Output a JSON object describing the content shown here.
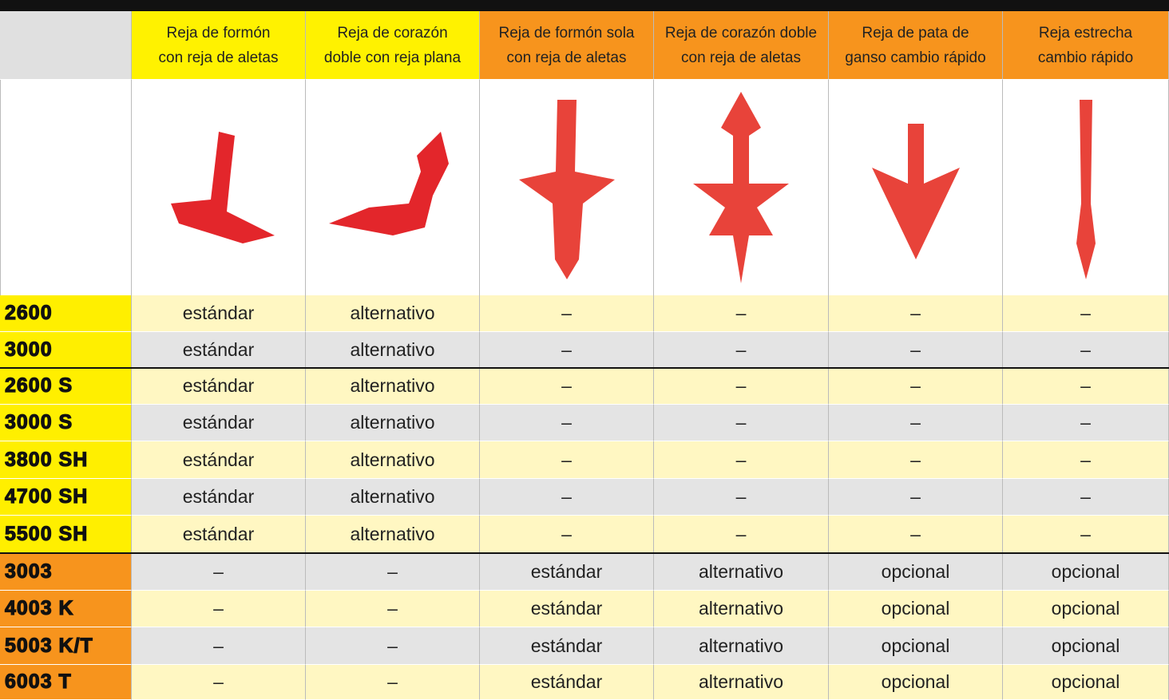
{
  "header": {
    "columns": [
      [
        "Reja de formón",
        "con reja de aletas"
      ],
      [
        "Reja de corazón",
        "doble con reja plana"
      ],
      [
        "Reja de formón sola",
        "con reja de aletas"
      ],
      [
        "Reja de corazón doble",
        "con reja de aletas"
      ],
      [
        "Reja de pata de",
        "ganso cambio rápido"
      ],
      [
        "Reja estrecha",
        "cambio rápido"
      ]
    ]
  },
  "table": {
    "rows": [
      {
        "model": "2600",
        "cells": [
          "estándar",
          "alternativo",
          "–",
          "–",
          "–",
          "–"
        ]
      },
      {
        "model": "3000",
        "cells": [
          "estándar",
          "alternativo",
          "–",
          "–",
          "–",
          "–"
        ]
      },
      {
        "model": "2600 S",
        "cells": [
          "estándar",
          "alternativo",
          "–",
          "–",
          "–",
          "–"
        ]
      },
      {
        "model": "3000 S",
        "cells": [
          "estándar",
          "alternativo",
          "–",
          "–",
          "–",
          "–"
        ]
      },
      {
        "model": "3800 SH",
        "cells": [
          "estándar",
          "alternativo",
          "–",
          "–",
          "–",
          "–"
        ]
      },
      {
        "model": "4700 SH",
        "cells": [
          "estándar",
          "alternativo",
          "–",
          "–",
          "–",
          "–"
        ]
      },
      {
        "model": "5500 SH",
        "cells": [
          "estándar",
          "alternativo",
          "–",
          "–",
          "–",
          "–"
        ]
      },
      {
        "model": "3003",
        "cells": [
          "–",
          "–",
          "estándar",
          "alternativo",
          "opcional",
          "opcional"
        ]
      },
      {
        "model": "4003 K",
        "cells": [
          "–",
          "–",
          "estándar",
          "alternativo",
          "opcional",
          "opcional"
        ]
      },
      {
        "model": "5003 K/T",
        "cells": [
          "–",
          "–",
          "estándar",
          "alternativo",
          "opcional",
          "opcional"
        ]
      },
      {
        "model": "6003 T",
        "cells": [
          "–",
          "–",
          "estándar",
          "alternativo",
          "opcional",
          "opcional"
        ]
      }
    ]
  }
}
